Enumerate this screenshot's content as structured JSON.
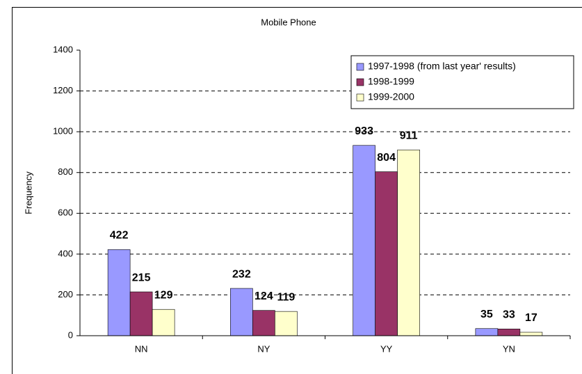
{
  "chart_data": {
    "type": "bar",
    "title": "Mobile Phone",
    "y_label": "Frequency",
    "categories": [
      "NN",
      "NY",
      "YY",
      "YN"
    ],
    "series": [
      {
        "name": "1997-1998 (from last year' results)",
        "color": "#9999ff",
        "values": [
          422,
          232,
          933,
          35
        ]
      },
      {
        "name": "1998-1999",
        "color": "#993366",
        "values": [
          215,
          124,
          804,
          33
        ]
      },
      {
        "name": "1999-2000",
        "color": "#ffffcc",
        "values": [
          129,
          119,
          911,
          17
        ]
      }
    ],
    "ylim": [
      0,
      1400
    ],
    "yticks": [
      0,
      200,
      400,
      600,
      800,
      1000,
      1200,
      1400
    ],
    "grid": true,
    "legend": "top-right",
    "data_labels": true
  }
}
